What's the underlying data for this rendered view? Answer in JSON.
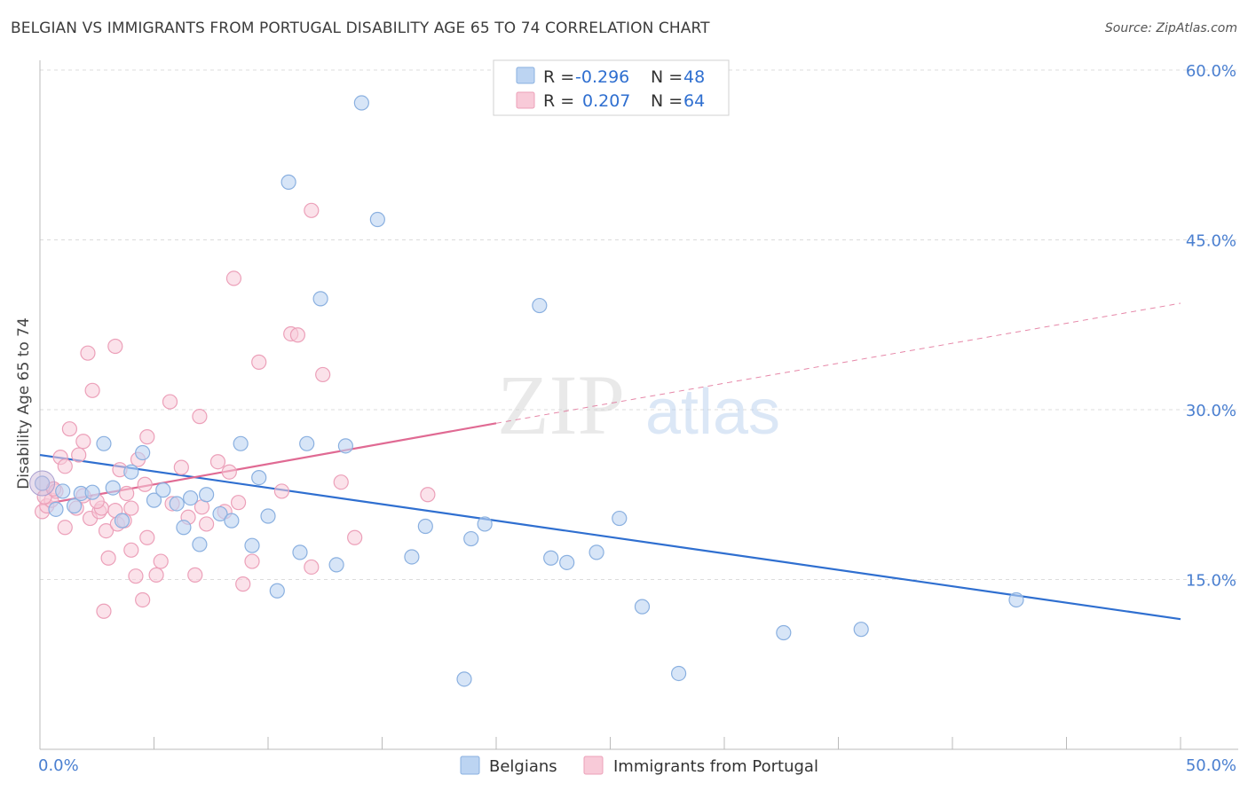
{
  "header": {
    "title": "BELGIAN VS IMMIGRANTS FROM PORTUGAL DISABILITY AGE 65 TO 74 CORRELATION CHART",
    "source": "Source: ZipAtlas.com"
  },
  "watermark": {
    "zip": "ZIP",
    "atlas": "atlas"
  },
  "colors": {
    "belgians": "#9cc0ea",
    "belgians_line": "#2f6fd0",
    "portugal": "#f4a8c0",
    "portugal_line": "#e06a93",
    "tick_label": "#4a7fd0",
    "grid": "#dcdcdc"
  },
  "legend_top": {
    "rows": [
      {
        "r_label": "R = ",
        "r_value": "-0.296",
        "n_label": "N = ",
        "n_value": "48"
      },
      {
        "r_label": "R = ",
        "r_value": "0.207",
        "n_label": "N = ",
        "n_value": "64"
      }
    ]
  },
  "chart_data": {
    "type": "scatter",
    "title": "BELGIAN VS IMMIGRANTS FROM PORTUGAL DISABILITY AGE 65 TO 74 CORRELATION CHART",
    "xlabel": "",
    "ylabel": "Disability Age 65 to 74",
    "xlim": [
      0,
      50
    ],
    "ylim": [
      0,
      60
    ],
    "x_tick_labels": [
      "0.0%",
      "50.0%"
    ],
    "y_tick_values": [
      15,
      30,
      45,
      60
    ],
    "y_tick_labels": [
      "15.0%",
      "30.0%",
      "45.0%",
      "60.0%"
    ],
    "grid": true,
    "legend_position": "bottom-center",
    "series": [
      {
        "name": "Belgians",
        "color": "#9cc0ea",
        "points": [
          [
            0.1,
            23.5
          ],
          [
            0.7,
            21.2
          ],
          [
            1.0,
            22.8
          ],
          [
            1.5,
            21.5
          ],
          [
            1.8,
            22.6
          ],
          [
            2.3,
            22.7
          ],
          [
            2.8,
            27.0
          ],
          [
            3.2,
            23.1
          ],
          [
            3.6,
            20.2
          ],
          [
            4.0,
            24.5
          ],
          [
            4.5,
            26.2
          ],
          [
            5.0,
            22.0
          ],
          [
            5.4,
            22.9
          ],
          [
            6.0,
            21.7
          ],
          [
            6.3,
            19.6
          ],
          [
            6.6,
            22.2
          ],
          [
            7.0,
            18.1
          ],
          [
            7.3,
            22.5
          ],
          [
            7.9,
            20.8
          ],
          [
            8.4,
            20.2
          ],
          [
            8.8,
            27.0
          ],
          [
            9.3,
            18.0
          ],
          [
            9.6,
            24.0
          ],
          [
            10.0,
            20.6
          ],
          [
            10.4,
            14.0
          ],
          [
            10.9,
            50.1
          ],
          [
            11.4,
            17.4
          ],
          [
            11.7,
            27.0
          ],
          [
            12.3,
            39.8
          ],
          [
            13.0,
            16.3
          ],
          [
            13.4,
            26.8
          ],
          [
            14.1,
            57.1
          ],
          [
            14.8,
            46.8
          ],
          [
            16.3,
            17.0
          ],
          [
            16.9,
            19.7
          ],
          [
            18.6,
            6.2
          ],
          [
            18.9,
            18.6
          ],
          [
            19.5,
            19.9
          ],
          [
            21.9,
            39.2
          ],
          [
            22.4,
            16.9
          ],
          [
            23.1,
            16.5
          ],
          [
            24.4,
            17.4
          ],
          [
            25.4,
            20.4
          ],
          [
            26.4,
            12.6
          ],
          [
            28.0,
            6.7
          ],
          [
            32.6,
            10.3
          ],
          [
            36.0,
            10.6
          ],
          [
            42.8,
            13.2
          ]
        ]
      },
      {
        "name": "Immigrants from Portugal",
        "color": "#f4a8c0",
        "points": [
          [
            0.1,
            21.0
          ],
          [
            0.3,
            21.5
          ],
          [
            0.5,
            22.0
          ],
          [
            0.7,
            22.8
          ],
          [
            0.9,
            25.8
          ],
          [
            1.1,
            25.0
          ],
          [
            1.1,
            19.6
          ],
          [
            1.3,
            28.3
          ],
          [
            1.6,
            21.3
          ],
          [
            1.7,
            26.0
          ],
          [
            1.9,
            22.4
          ],
          [
            1.9,
            27.2
          ],
          [
            2.1,
            35.0
          ],
          [
            2.2,
            20.4
          ],
          [
            2.3,
            31.7
          ],
          [
            2.6,
            21.0
          ],
          [
            2.7,
            21.3
          ],
          [
            2.8,
            12.2
          ],
          [
            2.9,
            19.3
          ],
          [
            3.0,
            16.9
          ],
          [
            3.3,
            35.6
          ],
          [
            3.3,
            21.1
          ],
          [
            3.4,
            19.9
          ],
          [
            3.5,
            24.7
          ],
          [
            3.7,
            20.2
          ],
          [
            3.8,
            22.6
          ],
          [
            4.0,
            21.3
          ],
          [
            4.0,
            17.6
          ],
          [
            4.2,
            15.3
          ],
          [
            4.3,
            25.6
          ],
          [
            4.5,
            13.2
          ],
          [
            4.7,
            27.6
          ],
          [
            4.7,
            18.7
          ],
          [
            5.1,
            15.4
          ],
          [
            5.3,
            16.6
          ],
          [
            5.7,
            30.7
          ],
          [
            6.2,
            24.9
          ],
          [
            6.5,
            20.5
          ],
          [
            6.8,
            15.4
          ],
          [
            7.0,
            29.4
          ],
          [
            7.1,
            21.4
          ],
          [
            7.3,
            19.9
          ],
          [
            7.8,
            25.4
          ],
          [
            8.1,
            21.0
          ],
          [
            8.3,
            24.5
          ],
          [
            8.5,
            41.6
          ],
          [
            8.7,
            21.8
          ],
          [
            8.9,
            14.6
          ],
          [
            9.3,
            16.6
          ],
          [
            9.6,
            34.2
          ],
          [
            10.6,
            22.8
          ],
          [
            11.0,
            36.7
          ],
          [
            11.3,
            36.6
          ],
          [
            11.9,
            47.6
          ],
          [
            11.9,
            16.1
          ],
          [
            12.4,
            33.1
          ],
          [
            13.2,
            23.6
          ],
          [
            13.8,
            18.7
          ],
          [
            17.0,
            22.5
          ],
          [
            0.2,
            22.3
          ],
          [
            0.6,
            23.0
          ],
          [
            2.5,
            21.9
          ],
          [
            4.6,
            23.4
          ],
          [
            5.8,
            21.7
          ]
        ]
      }
    ],
    "trendlines": [
      {
        "series": "Belgians",
        "x": [
          0,
          50
        ],
        "y": [
          26.0,
          11.5
        ],
        "style": "solid"
      },
      {
        "series": "Immigrants from Portugal",
        "solid_x": [
          0,
          20
        ],
        "solid_y": [
          21.6,
          28.8
        ],
        "dashed_x": [
          20,
          50
        ],
        "dashed_y": [
          28.8,
          39.4
        ]
      }
    ]
  },
  "legend_bottom": {
    "items": [
      {
        "label": "Belgians"
      },
      {
        "label": "Immigrants from Portugal"
      }
    ]
  }
}
